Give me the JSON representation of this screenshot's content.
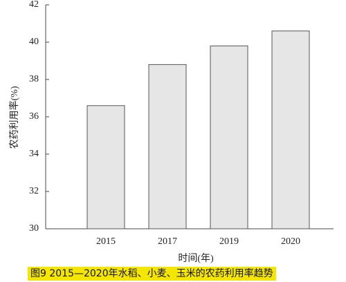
{
  "chart_data": {
    "type": "bar",
    "title": "图9  2015—2020年水稻、小麦、玉米的农药利用率趋势",
    "x_label": "时间(年)",
    "y_label": "农药利用率(%)",
    "categories": [
      "2015",
      "2017",
      "2019",
      "2020"
    ],
    "values": [
      36.6,
      38.8,
      39.8,
      40.6
    ],
    "color": "#e6e6e6",
    "ylim": [
      30,
      42
    ],
    "yticks": [
      30,
      32,
      34,
      36,
      38,
      40,
      42
    ],
    "grid": false
  }
}
